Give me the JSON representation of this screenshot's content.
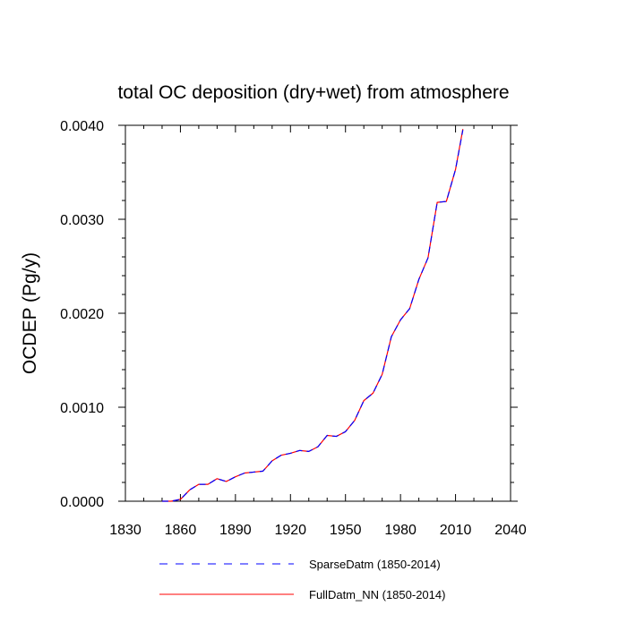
{
  "chart_data": {
    "type": "line",
    "title": "total OC deposition (dry+wet) from atmosphere",
    "xlabel": "",
    "ylabel": "OCDEP  (Pg/y)",
    "xlim": [
      1830,
      2040
    ],
    "ylim": [
      0,
      0.004
    ],
    "x_ticks": [
      1830,
      1860,
      1890,
      1920,
      1950,
      1980,
      2010,
      2040
    ],
    "x_tick_labels": [
      "1830",
      "1860",
      "1890",
      "1920",
      "1950",
      "1980",
      "2010",
      "2040"
    ],
    "y_ticks": [
      0,
      0.001,
      0.002,
      0.003,
      0.004
    ],
    "y_tick_labels": [
      "0.0000",
      "0.0010",
      "0.0020",
      "0.0030",
      "0.0040"
    ],
    "x": [
      1850,
      1855,
      1860,
      1865,
      1870,
      1875,
      1880,
      1885,
      1890,
      1895,
      1900,
      1905,
      1910,
      1915,
      1920,
      1925,
      1930,
      1935,
      1940,
      1945,
      1950,
      1955,
      1960,
      1965,
      1970,
      1975,
      1980,
      1985,
      1990,
      1995,
      2000,
      2005,
      2010,
      2014
    ],
    "series": [
      {
        "name": "SparseDatm (1850-2014)",
        "color": "#0000ff",
        "style": "dashed",
        "values": [
          0.0,
          0.0,
          2e-05,
          0.00012,
          0.00018,
          0.00018,
          0.00024,
          0.00021,
          0.00026,
          0.0003,
          0.00031,
          0.00032,
          0.00043,
          0.00049,
          0.00051,
          0.00054,
          0.00053,
          0.00058,
          0.0007,
          0.00069,
          0.00074,
          0.00086,
          0.00107,
          0.00115,
          0.00135,
          0.00175,
          0.00193,
          0.00205,
          0.00236,
          0.00259,
          0.00318,
          0.00319,
          0.00353,
          0.00395
        ]
      },
      {
        "name": "FullDatm_NN (1850-2014)",
        "color": "#ff0000",
        "style": "solid",
        "values": [
          0.0,
          0.0,
          2e-05,
          0.00012,
          0.00018,
          0.00018,
          0.00024,
          0.00021,
          0.00026,
          0.0003,
          0.00031,
          0.00032,
          0.00043,
          0.00049,
          0.00051,
          0.00054,
          0.00053,
          0.00058,
          0.0007,
          0.00069,
          0.00074,
          0.00086,
          0.00107,
          0.00115,
          0.00135,
          0.00175,
          0.00193,
          0.00205,
          0.00236,
          0.00259,
          0.00318,
          0.00319,
          0.00353,
          0.00396
        ]
      }
    ],
    "legend_position": "bottom",
    "grid": false
  }
}
